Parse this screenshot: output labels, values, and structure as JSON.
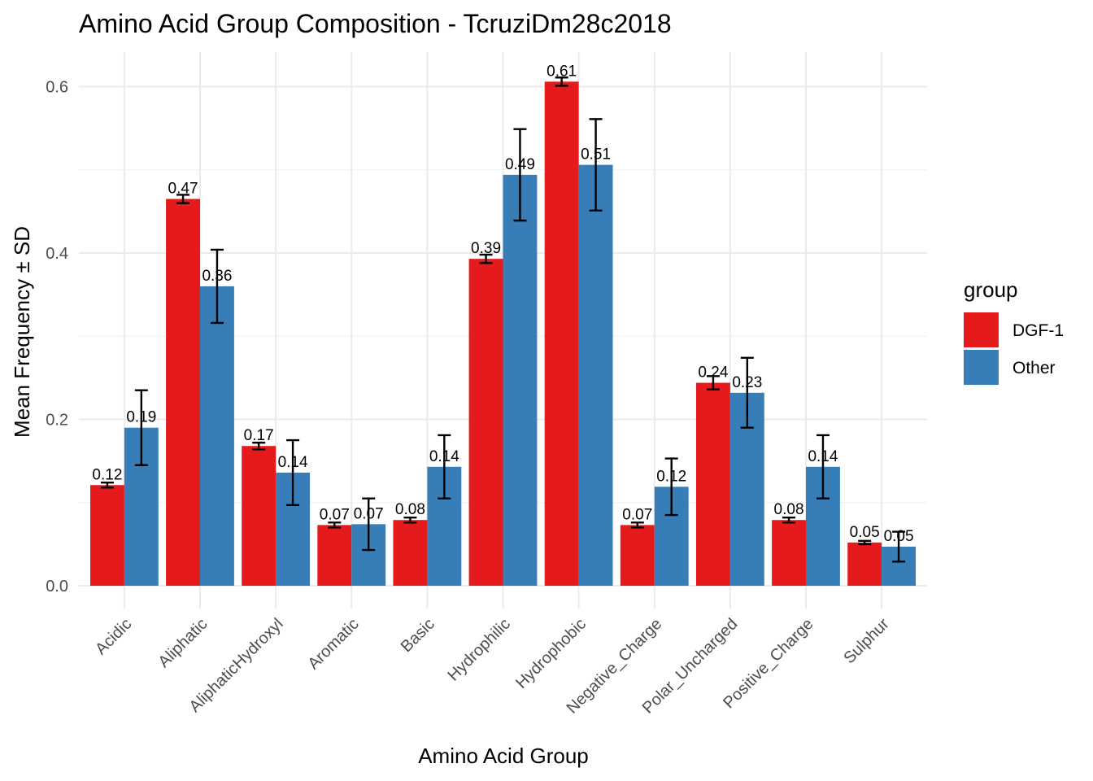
{
  "chart_data": {
    "type": "bar",
    "title": "Amino Acid Group Composition - TcruziDm28c2018",
    "xlabel": "Amino Acid Group",
    "ylabel": "Mean Frequency ± SD",
    "ylim": [
      -0.03,
      0.64
    ],
    "yticks": [
      0.0,
      0.2,
      0.4,
      0.6
    ],
    "ytick_labels": [
      "0.0",
      "0.2",
      "0.4",
      "0.6"
    ],
    "grid": true,
    "legend": {
      "title": "group",
      "position": "right"
    },
    "categories": [
      "Acidic",
      "Aliphatic",
      "AliphaticHydroxyl",
      "Aromatic",
      "Basic",
      "Hydrophilic",
      "Hydrophobic",
      "Negative_Charge",
      "Polar_Uncharged",
      "Positive_Charge",
      "Sulphur"
    ],
    "series": [
      {
        "name": "DGF-1",
        "color": "#e41a1c",
        "values": [
          0.121,
          0.465,
          0.168,
          0.073,
          0.079,
          0.393,
          0.606,
          0.073,
          0.244,
          0.079,
          0.052
        ],
        "sd": [
          0.003,
          0.005,
          0.004,
          0.003,
          0.003,
          0.005,
          0.005,
          0.003,
          0.008,
          0.003,
          0.002
        ],
        "labels": [
          "0.12",
          "0.47",
          "0.17",
          "0.07",
          "0.08",
          "0.39",
          "0.61",
          "0.07",
          "0.24",
          "0.08",
          "0.05"
        ]
      },
      {
        "name": "Other",
        "color": "#377eb8",
        "values": [
          0.19,
          0.36,
          0.136,
          0.074,
          0.143,
          0.494,
          0.506,
          0.119,
          0.232,
          0.143,
          0.047
        ],
        "sd": [
          0.045,
          0.044,
          0.039,
          0.031,
          0.038,
          0.055,
          0.055,
          0.034,
          0.042,
          0.038,
          0.018
        ],
        "labels": [
          "0.19",
          "0.36",
          "0.14",
          "0.07",
          "0.14",
          "0.49",
          "0.51",
          "0.12",
          "0.23",
          "0.14",
          "0.05"
        ]
      }
    ]
  }
}
